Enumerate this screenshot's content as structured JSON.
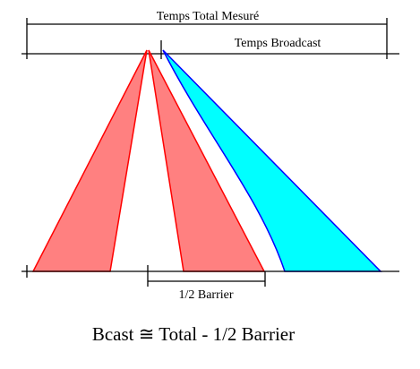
{
  "labels": {
    "total_time": "Temps Total Mesuré",
    "broadcast_time": "Temps Broadcast",
    "half_barrier": "1/2 Barrier",
    "formula": "Bcast ≅ Total - 1/2 Barrier"
  },
  "colors": {
    "line": "#000000",
    "red_fill": "#ff8080",
    "red_stroke": "#ff0000",
    "cyan_fill": "#00ffff",
    "blue_stroke": "#0000ff"
  }
}
